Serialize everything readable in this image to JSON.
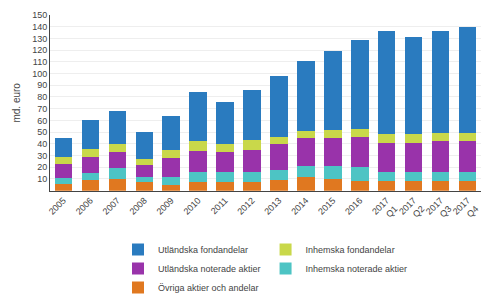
{
  "chart_data": {
    "type": "bar",
    "stacked": true,
    "ylabel": "md. euro",
    "categories": [
      "2005",
      "2006",
      "2007",
      "2008",
      "2009",
      "2010",
      "2011",
      "2012",
      "2013",
      "2014",
      "2015",
      "2016",
      "2017\nQ1",
      "2017\nQ2",
      "2017\nQ3",
      "2017\nQ4"
    ],
    "series": [
      {
        "name": "Övriga aktier och andelar",
        "color": "#e07820",
        "values": [
          6,
          9,
          10,
          7,
          5,
          7,
          7,
          7,
          9,
          12,
          10,
          8,
          8,
          8,
          8,
          8
        ]
      },
      {
        "name": "Inhemska noterade aktier",
        "color": "#4dc4c4",
        "values": [
          5,
          6,
          9,
          5,
          7,
          9,
          9,
          9,
          9,
          9,
          11,
          12,
          8,
          8,
          8,
          8
        ]
      },
      {
        "name": "Utländska noterade aktier",
        "color": "#9933aa",
        "values": [
          12,
          14,
          14,
          10,
          16,
          18,
          17,
          19,
          22,
          24,
          24,
          26,
          25,
          25,
          26,
          26
        ]
      },
      {
        "name": "Inhemska fondandelar",
        "color": "#c9d84a",
        "values": [
          6,
          7,
          7,
          5,
          7,
          8,
          7,
          8,
          6,
          6,
          7,
          7,
          7,
          7,
          7,
          7
        ]
      },
      {
        "name": "Utländska fondandelar",
        "color": "#2a7bbf",
        "values": [
          16,
          24,
          28,
          23,
          29,
          42,
          36,
          43,
          52,
          60,
          67,
          76,
          88,
          83,
          87,
          91
        ]
      }
    ],
    "ylim": [
      0,
      150
    ],
    "yticks": [
      10,
      20,
      30,
      40,
      50,
      60,
      70,
      80,
      90,
      100,
      110,
      120,
      130,
      140,
      150
    ],
    "grid": true,
    "legend": "bottom"
  }
}
